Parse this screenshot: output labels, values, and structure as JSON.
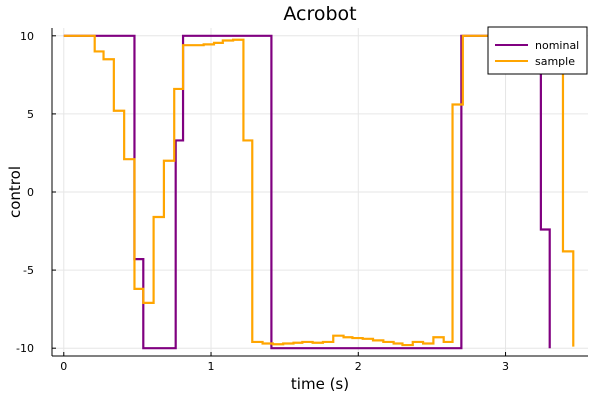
{
  "chart_data": {
    "type": "line",
    "step": true,
    "title": "Acrobot",
    "xlabel": "time (s)",
    "ylabel": "control",
    "xlim": [
      -0.08,
      3.56
    ],
    "ylim": [
      -10.5,
      10.5
    ],
    "xticks": [
      0,
      1,
      2,
      3
    ],
    "xtick_labels": [
      "0",
      "1",
      "2",
      "3"
    ],
    "yticks": [
      -10,
      -5,
      0,
      5,
      10
    ],
    "ytick_labels": [
      "-10",
      "-5",
      "0",
      "5",
      "10"
    ],
    "grid": true,
    "legend_position": "top-right",
    "series": [
      {
        "name": "nominal",
        "color": "#800080",
        "x": [
          0,
          0.48,
          0.54,
          0.76,
          0.81,
          1.41,
          2.7,
          3.24,
          3.3
        ],
        "y": [
          10,
          -4.3,
          -10,
          3.3,
          10,
          -10,
          10,
          -2.4,
          -10
        ]
      },
      {
        "name": "sample",
        "color": "#FFA500",
        "x": [
          0,
          0.21,
          0.27,
          0.34,
          0.41,
          0.48,
          0.54,
          0.61,
          0.68,
          0.75,
          0.81,
          0.88,
          0.95,
          1.02,
          1.08,
          1.15,
          1.22,
          1.28,
          1.35,
          1.42,
          1.49,
          1.56,
          1.62,
          1.69,
          1.76,
          1.83,
          1.9,
          1.96,
          2.03,
          2.1,
          2.17,
          2.24,
          2.3,
          2.37,
          2.44,
          2.51,
          2.58,
          2.64,
          2.71,
          2.78,
          2.85,
          2.91,
          2.98,
          3.05,
          3.12,
          3.18,
          3.25,
          3.32,
          3.39,
          3.46
        ],
        "y": [
          10,
          9.0,
          8.5,
          5.2,
          2.1,
          -6.2,
          -7.1,
          -1.6,
          2.0,
          6.6,
          9.4,
          9.4,
          9.45,
          9.55,
          9.7,
          9.75,
          3.3,
          -9.6,
          -9.7,
          -9.75,
          -9.7,
          -9.65,
          -9.6,
          -9.65,
          -9.6,
          -9.2,
          -9.3,
          -9.35,
          -9.4,
          -9.5,
          -9.6,
          -9.7,
          -9.8,
          -9.6,
          -9.7,
          -9.3,
          -9.6,
          5.6,
          10,
          10,
          10,
          10,
          10,
          10,
          10,
          10,
          10,
          10,
          -3.8,
          -9.9
        ]
      }
    ]
  }
}
